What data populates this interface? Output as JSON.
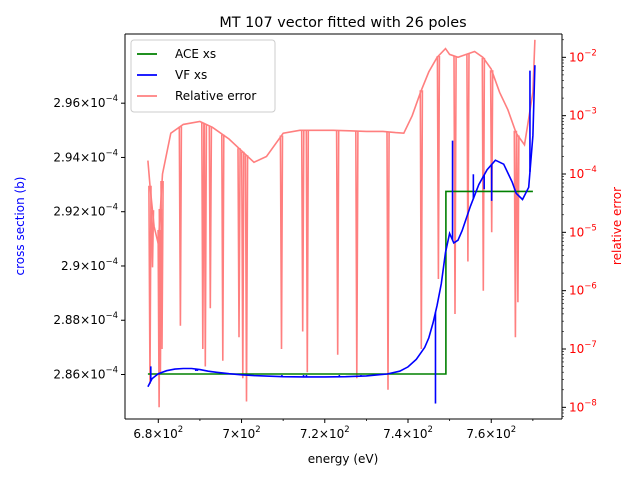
{
  "chart_data": {
    "type": "line",
    "title": "MT 107 vector fitted with 26 poles",
    "xlabel": "energy (eV)",
    "ylabel_left": "cross section (b)",
    "ylabel_right": "relative error",
    "xlim": [
      672,
      777
    ],
    "ylim_left": [
      0.00028436,
      0.00029855
    ],
    "ylim_right_log": [
      -8.2,
      -1.6
    ],
    "right_axis_scale": "log",
    "legend_position": "upper-left",
    "colors": {
      "ace": "#008000",
      "vf": "#0000ff",
      "err": "#ff7f7f",
      "right_axis": "#ff0000",
      "left_label": "#0000ff"
    },
    "x_ticks": [
      {
        "value": 680,
        "mant": "6.8",
        "exp": "2"
      },
      {
        "value": 700,
        "mant": "7",
        "exp": "2"
      },
      {
        "value": 720,
        "mant": "7.2",
        "exp": "2"
      },
      {
        "value": 740,
        "mant": "7.4",
        "exp": "2"
      },
      {
        "value": 760,
        "mant": "7.6",
        "exp": "2"
      }
    ],
    "y_ticks_left": [
      {
        "value": 0.000286,
        "mant": "2.86",
        "exp": "−4"
      },
      {
        "value": 0.000288,
        "mant": "2.88",
        "exp": "−4"
      },
      {
        "value": 0.00029,
        "mant": "2.9",
        "exp": "−4"
      },
      {
        "value": 0.000292,
        "mant": "2.92",
        "exp": "−4"
      },
      {
        "value": 0.000294,
        "mant": "2.94",
        "exp": "−4"
      },
      {
        "value": 0.000296,
        "mant": "2.96",
        "exp": "−4"
      }
    ],
    "y_ticks_right": [
      {
        "value": -8,
        "mant": "10",
        "exp": "−8"
      },
      {
        "value": -7,
        "mant": "10",
        "exp": "−7"
      },
      {
        "value": -6,
        "mant": "10",
        "exp": "−6"
      },
      {
        "value": -5,
        "mant": "10",
        "exp": "−5"
      },
      {
        "value": -4,
        "mant": "10",
        "exp": "−4"
      },
      {
        "value": -3,
        "mant": "10",
        "exp": "−3"
      },
      {
        "value": -2,
        "mant": "10",
        "exp": "−2"
      }
    ],
    "series": [
      {
        "name": "ACE xs",
        "axis": "left",
        "color": "#008000",
        "x": [
          677.5,
          749.1,
          749.1,
          770.0
        ],
        "y": [
          0.00028602,
          0.00028602,
          0.00029275,
          0.00029275
        ]
      },
      {
        "name": "VF xs",
        "axis": "left",
        "color": "#0000ff",
        "x": [
          677.5,
          678.5,
          680,
          682,
          684,
          686,
          688,
          690,
          692,
          694,
          697,
          700,
          703,
          706,
          710,
          715,
          720,
          725,
          730,
          735,
          738,
          740,
          742,
          744,
          745,
          746,
          747,
          748,
          749,
          750,
          751,
          752,
          753,
          755,
          757,
          759,
          761,
          763,
          765,
          766,
          767.5,
          769,
          770,
          770.5
        ],
        "y": [
          0.00028555,
          0.00028585,
          0.00028603,
          0.00028614,
          0.0002862,
          0.00028622,
          0.00028622,
          0.00028618,
          0.00028612,
          0.00028608,
          0.00028603,
          0.00028599,
          0.00028596,
          0.00028594,
          0.00028592,
          0.00028591,
          0.00028591,
          0.00028592,
          0.00028595,
          0.00028602,
          0.00028612,
          0.00028628,
          0.00028656,
          0.000287,
          0.00028735,
          0.0002879,
          0.00028855,
          0.00028935,
          0.0002905,
          0.0002912,
          0.00029085,
          0.00029095,
          0.0002913,
          0.0002922,
          0.000293,
          0.00029355,
          0.0002939,
          0.00029375,
          0.0002931,
          0.00029268,
          0.00029245,
          0.0002929,
          0.0002948,
          0.0002974
        ]
      },
      {
        "name": "Relative error",
        "axis": "right",
        "color": "#ff7f7f",
        "x": [
          677.5,
          678,
          679,
          680,
          681,
          683,
          686,
          690,
          693,
          697,
          700,
          703,
          706,
          710,
          714,
          718,
          722,
          726,
          730,
          734,
          737,
          739,
          741,
          743,
          745,
          747,
          749,
          750,
          752,
          754,
          756,
          758,
          760,
          762,
          764,
          766,
          768,
          770,
          770.5
        ],
        "y": [
          -3.77,
          -4.2,
          -4.9,
          -5.2,
          -4.0,
          -3.3,
          -3.15,
          -3.1,
          -3.2,
          -3.4,
          -3.6,
          -3.8,
          -3.7,
          -3.3,
          -3.25,
          -3.25,
          -3.25,
          -3.26,
          -3.27,
          -3.27,
          -3.29,
          -3.3,
          -3.0,
          -2.6,
          -2.25,
          -2.0,
          -1.85,
          -1.95,
          -2.0,
          -1.95,
          -1.9,
          -2.0,
          -2.2,
          -2.6,
          -2.9,
          -3.3,
          -3.5,
          -2.6,
          -1.7
        ]
      }
    ],
    "vf_spikes": [
      {
        "x": 678.2,
        "y": 0.0002863
      },
      {
        "x": 689.0,
        "y": 0.00028613
      },
      {
        "x": 689.4,
        "y": 0.00028613
      },
      {
        "x": 692.8,
        "y": 0.00028608
      },
      {
        "x": 700.2,
        "y": 0.00028599
      },
      {
        "x": 702.3,
        "y": 0.00028598
      },
      {
        "x": 709.7,
        "y": 0.00028598
      },
      {
        "x": 714.9,
        "y": 0.00028598
      },
      {
        "x": 715.6,
        "y": 0.00028598
      },
      {
        "x": 723.5,
        "y": 0.00028598
      },
      {
        "x": 728.7,
        "y": 0.00028598
      },
      {
        "x": 746.6,
        "y": 0.00028493
      },
      {
        "x": 750.7,
        "y": 0.00029462
      },
      {
        "x": 755.7,
        "y": 0.00029338
      },
      {
        "x": 758.3,
        "y": 0.00029283
      },
      {
        "x": 760.1,
        "y": 0.0002924
      },
      {
        "x": 769.3,
        "y": 0.0002972
      }
    ],
    "err_dips": [
      {
        "x": 678.0,
        "y": -7.6
      },
      {
        "x": 678.6,
        "y": -5.6
      },
      {
        "x": 680.2,
        "y": -8.0
      },
      {
        "x": 680.5,
        "y": -7.4
      },
      {
        "x": 680.9,
        "y": -7.0
      },
      {
        "x": 685.3,
        "y": -6.6
      },
      {
        "x": 690.7,
        "y": -7.0
      },
      {
        "x": 691.3,
        "y": -7.3
      },
      {
        "x": 692.5,
        "y": -6.3
      },
      {
        "x": 695.5,
        "y": -7.2
      },
      {
        "x": 699.4,
        "y": -6.8
      },
      {
        "x": 700.3,
        "y": -7.5
      },
      {
        "x": 701.2,
        "y": -7.9
      },
      {
        "x": 709.6,
        "y": -7.0
      },
      {
        "x": 714.7,
        "y": -6.7
      },
      {
        "x": 715.8,
        "y": -7.4
      },
      {
        "x": 723.1,
        "y": -7.1
      },
      {
        "x": 727.7,
        "y": -7.5
      },
      {
        "x": 735.2,
        "y": -7.7
      },
      {
        "x": 743.2,
        "y": -7.0
      },
      {
        "x": 747.3,
        "y": -5.8
      },
      {
        "x": 751.3,
        "y": -6.4
      },
      {
        "x": 754.4,
        "y": -5.5
      },
      {
        "x": 758.1,
        "y": -6.0
      },
      {
        "x": 760.1,
        "y": -5.0
      },
      {
        "x": 765.8,
        "y": -6.8
      },
      {
        "x": 766.4,
        "y": -6.2
      }
    ]
  }
}
